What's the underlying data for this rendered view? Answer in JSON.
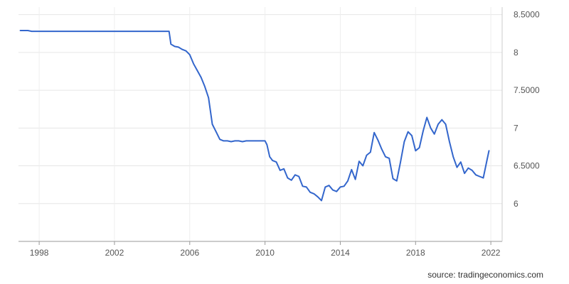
{
  "chart_data": {
    "type": "line",
    "title": "",
    "xlabel": "",
    "ylabel": "",
    "ylim": [
      5.5,
      8.6
    ],
    "x_ticks": [
      "1998",
      "2002",
      "2006",
      "2010",
      "2014",
      "2018",
      "2022"
    ],
    "y_ticks": [
      "8.5000",
      "8",
      "7.5000",
      "7",
      "6.5000",
      "6"
    ],
    "y_axis_side": "right",
    "grid": true,
    "legend": "none",
    "series": [
      {
        "color": "#3366cc",
        "x": [
          1997.0,
          1997.4,
          1997.6,
          2001.0,
          2001.2,
          2004.9,
          2005.0,
          2005.2,
          2005.4,
          2005.6,
          2005.8,
          2006.0,
          2006.2,
          2006.4,
          2006.6,
          2006.8,
          2007.0,
          2007.2,
          2007.4,
          2007.6,
          2007.8,
          2008.0,
          2008.2,
          2008.4,
          2008.6,
          2008.8,
          2009.0,
          2009.5,
          2010.0,
          2010.1,
          2010.25,
          2010.4,
          2010.6,
          2010.8,
          2011.0,
          2011.2,
          2011.4,
          2011.6,
          2011.8,
          2012.0,
          2012.2,
          2012.4,
          2012.6,
          2012.8,
          2013.0,
          2013.2,
          2013.4,
          2013.6,
          2013.8,
          2014.0,
          2014.2,
          2014.4,
          2014.6,
          2014.8,
          2015.0,
          2015.2,
          2015.4,
          2015.6,
          2015.8,
          2016.0,
          2016.2,
          2016.4,
          2016.6,
          2016.8,
          2017.0,
          2017.2,
          2017.4,
          2017.6,
          2017.8,
          2018.0,
          2018.2,
          2018.4,
          2018.6,
          2018.8,
          2019.0,
          2019.2,
          2019.4,
          2019.6,
          2019.8,
          2020.0,
          2020.2,
          2020.4,
          2020.6,
          2020.8,
          2021.0,
          2021.2,
          2021.4,
          2021.6,
          2021.8,
          2021.9
        ],
        "y": [
          8.29,
          8.29,
          8.28,
          8.28,
          8.28,
          8.28,
          8.11,
          8.08,
          8.07,
          8.04,
          8.02,
          7.97,
          7.85,
          7.76,
          7.67,
          7.55,
          7.4,
          7.05,
          6.95,
          6.85,
          6.83,
          6.83,
          6.82,
          6.83,
          6.83,
          6.82,
          6.83,
          6.83,
          6.83,
          6.78,
          6.62,
          6.57,
          6.55,
          6.44,
          6.46,
          6.34,
          6.31,
          6.38,
          6.36,
          6.23,
          6.22,
          6.15,
          6.13,
          6.09,
          6.04,
          6.22,
          6.24,
          6.18,
          6.16,
          6.22,
          6.23,
          6.3,
          6.45,
          6.32,
          6.56,
          6.5,
          6.64,
          6.68,
          6.94,
          6.84,
          6.72,
          6.62,
          6.6,
          6.33,
          6.3,
          6.55,
          6.82,
          6.95,
          6.9,
          6.7,
          6.74,
          6.96,
          7.14,
          7.0,
          6.92,
          7.05,
          7.11,
          7.05,
          6.82,
          6.62,
          6.48,
          6.55,
          6.4,
          6.47,
          6.44,
          6.38,
          6.36,
          6.34,
          6.58,
          6.7
        ]
      }
    ]
  },
  "source_text": "source: tradingeconomics.com"
}
